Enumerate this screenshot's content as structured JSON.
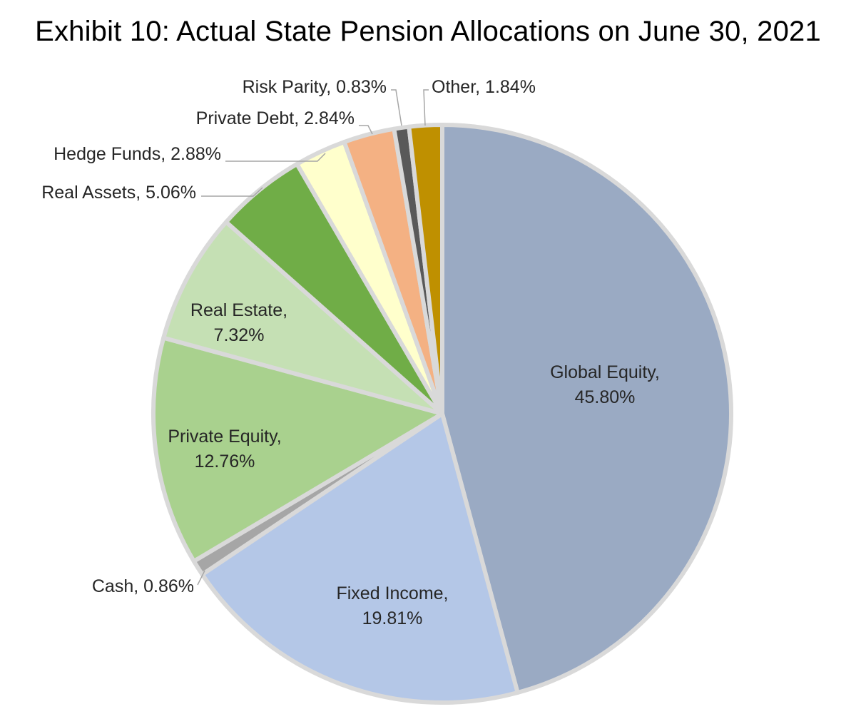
{
  "chart_data": {
    "type": "pie",
    "title": "Exhibit 10: Actual State Pension Allocations on June 30, 2021",
    "unit": "%",
    "slices": [
      {
        "name": "Global Equity",
        "value": 45.8,
        "label": "45.80%",
        "color": "#9aaac3"
      },
      {
        "name": "Fixed Income",
        "value": 19.81,
        "label": "19.81%",
        "color": "#b4c7e7"
      },
      {
        "name": "Cash",
        "value": 0.86,
        "label": "0.86%",
        "color": "#a6a6a6"
      },
      {
        "name": "Private Equity",
        "value": 12.76,
        "label": "12.76%",
        "color": "#a9d18e"
      },
      {
        "name": "Real Estate",
        "value": 7.32,
        "label": "7.32%",
        "color": "#c5e0b4"
      },
      {
        "name": "Real Assets",
        "value": 5.06,
        "label": "5.06%",
        "color": "#70ad47"
      },
      {
        "name": "Hedge Funds",
        "value": 2.88,
        "label": "2.88%",
        "color": "#ffffcc"
      },
      {
        "name": "Private Debt",
        "value": 2.84,
        "label": "2.84%",
        "color": "#f4b183"
      },
      {
        "name": "Risk Parity",
        "value": 0.83,
        "label": "0.83%",
        "color": "#595959"
      },
      {
        "name": "Other",
        "value": 1.84,
        "label": "1.84%",
        "color": "#bf9000"
      }
    ],
    "start_angle": "12 o'clock",
    "direction": "clockwise",
    "slice_border_color": "#d9d9d9",
    "legend": "none"
  }
}
